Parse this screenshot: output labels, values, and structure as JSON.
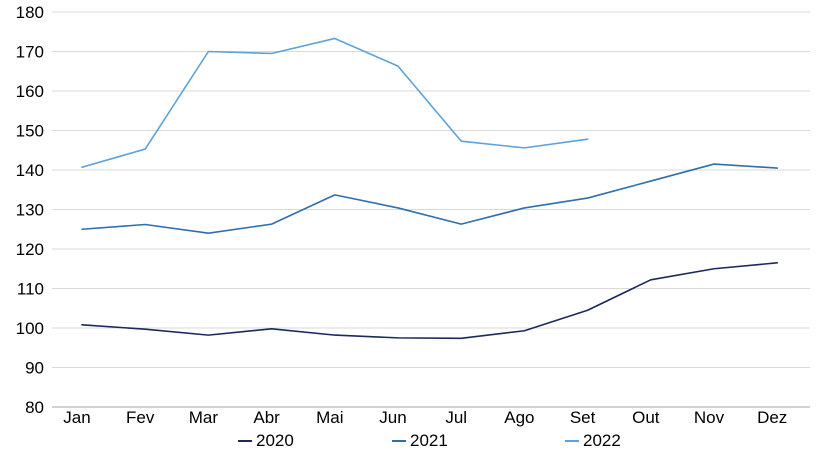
{
  "chart_data": {
    "type": "line",
    "categories": [
      "Jan",
      "Fev",
      "Mar",
      "Abr",
      "Mai",
      "Jun",
      "Jul",
      "Ago",
      "Set",
      "Out",
      "Nov",
      "Dez"
    ],
    "ylim": [
      80,
      180
    ],
    "yticks": [
      80,
      90,
      100,
      110,
      120,
      130,
      140,
      150,
      160,
      170,
      180
    ],
    "grid": true,
    "legend_position": "bottom",
    "series": [
      {
        "name": "2020",
        "color": "#1a2a5c",
        "values": [
          100.8,
          99.7,
          98.2,
          99.8,
          98.2,
          97.5,
          97.4,
          99.3,
          104.5,
          112.2,
          115.0,
          116.5
        ]
      },
      {
        "name": "2021",
        "color": "#2e6fad",
        "values": [
          125.0,
          126.2,
          124.0,
          126.3,
          133.7,
          130.4,
          126.3,
          130.4,
          132.9,
          137.2,
          141.5,
          140.5
        ]
      },
      {
        "name": "2022",
        "color": "#5ba3d9",
        "values": [
          140.7,
          145.3,
          170.0,
          169.5,
          173.3,
          166.3,
          147.3,
          145.6,
          147.8,
          null,
          null,
          null
        ]
      }
    ]
  }
}
